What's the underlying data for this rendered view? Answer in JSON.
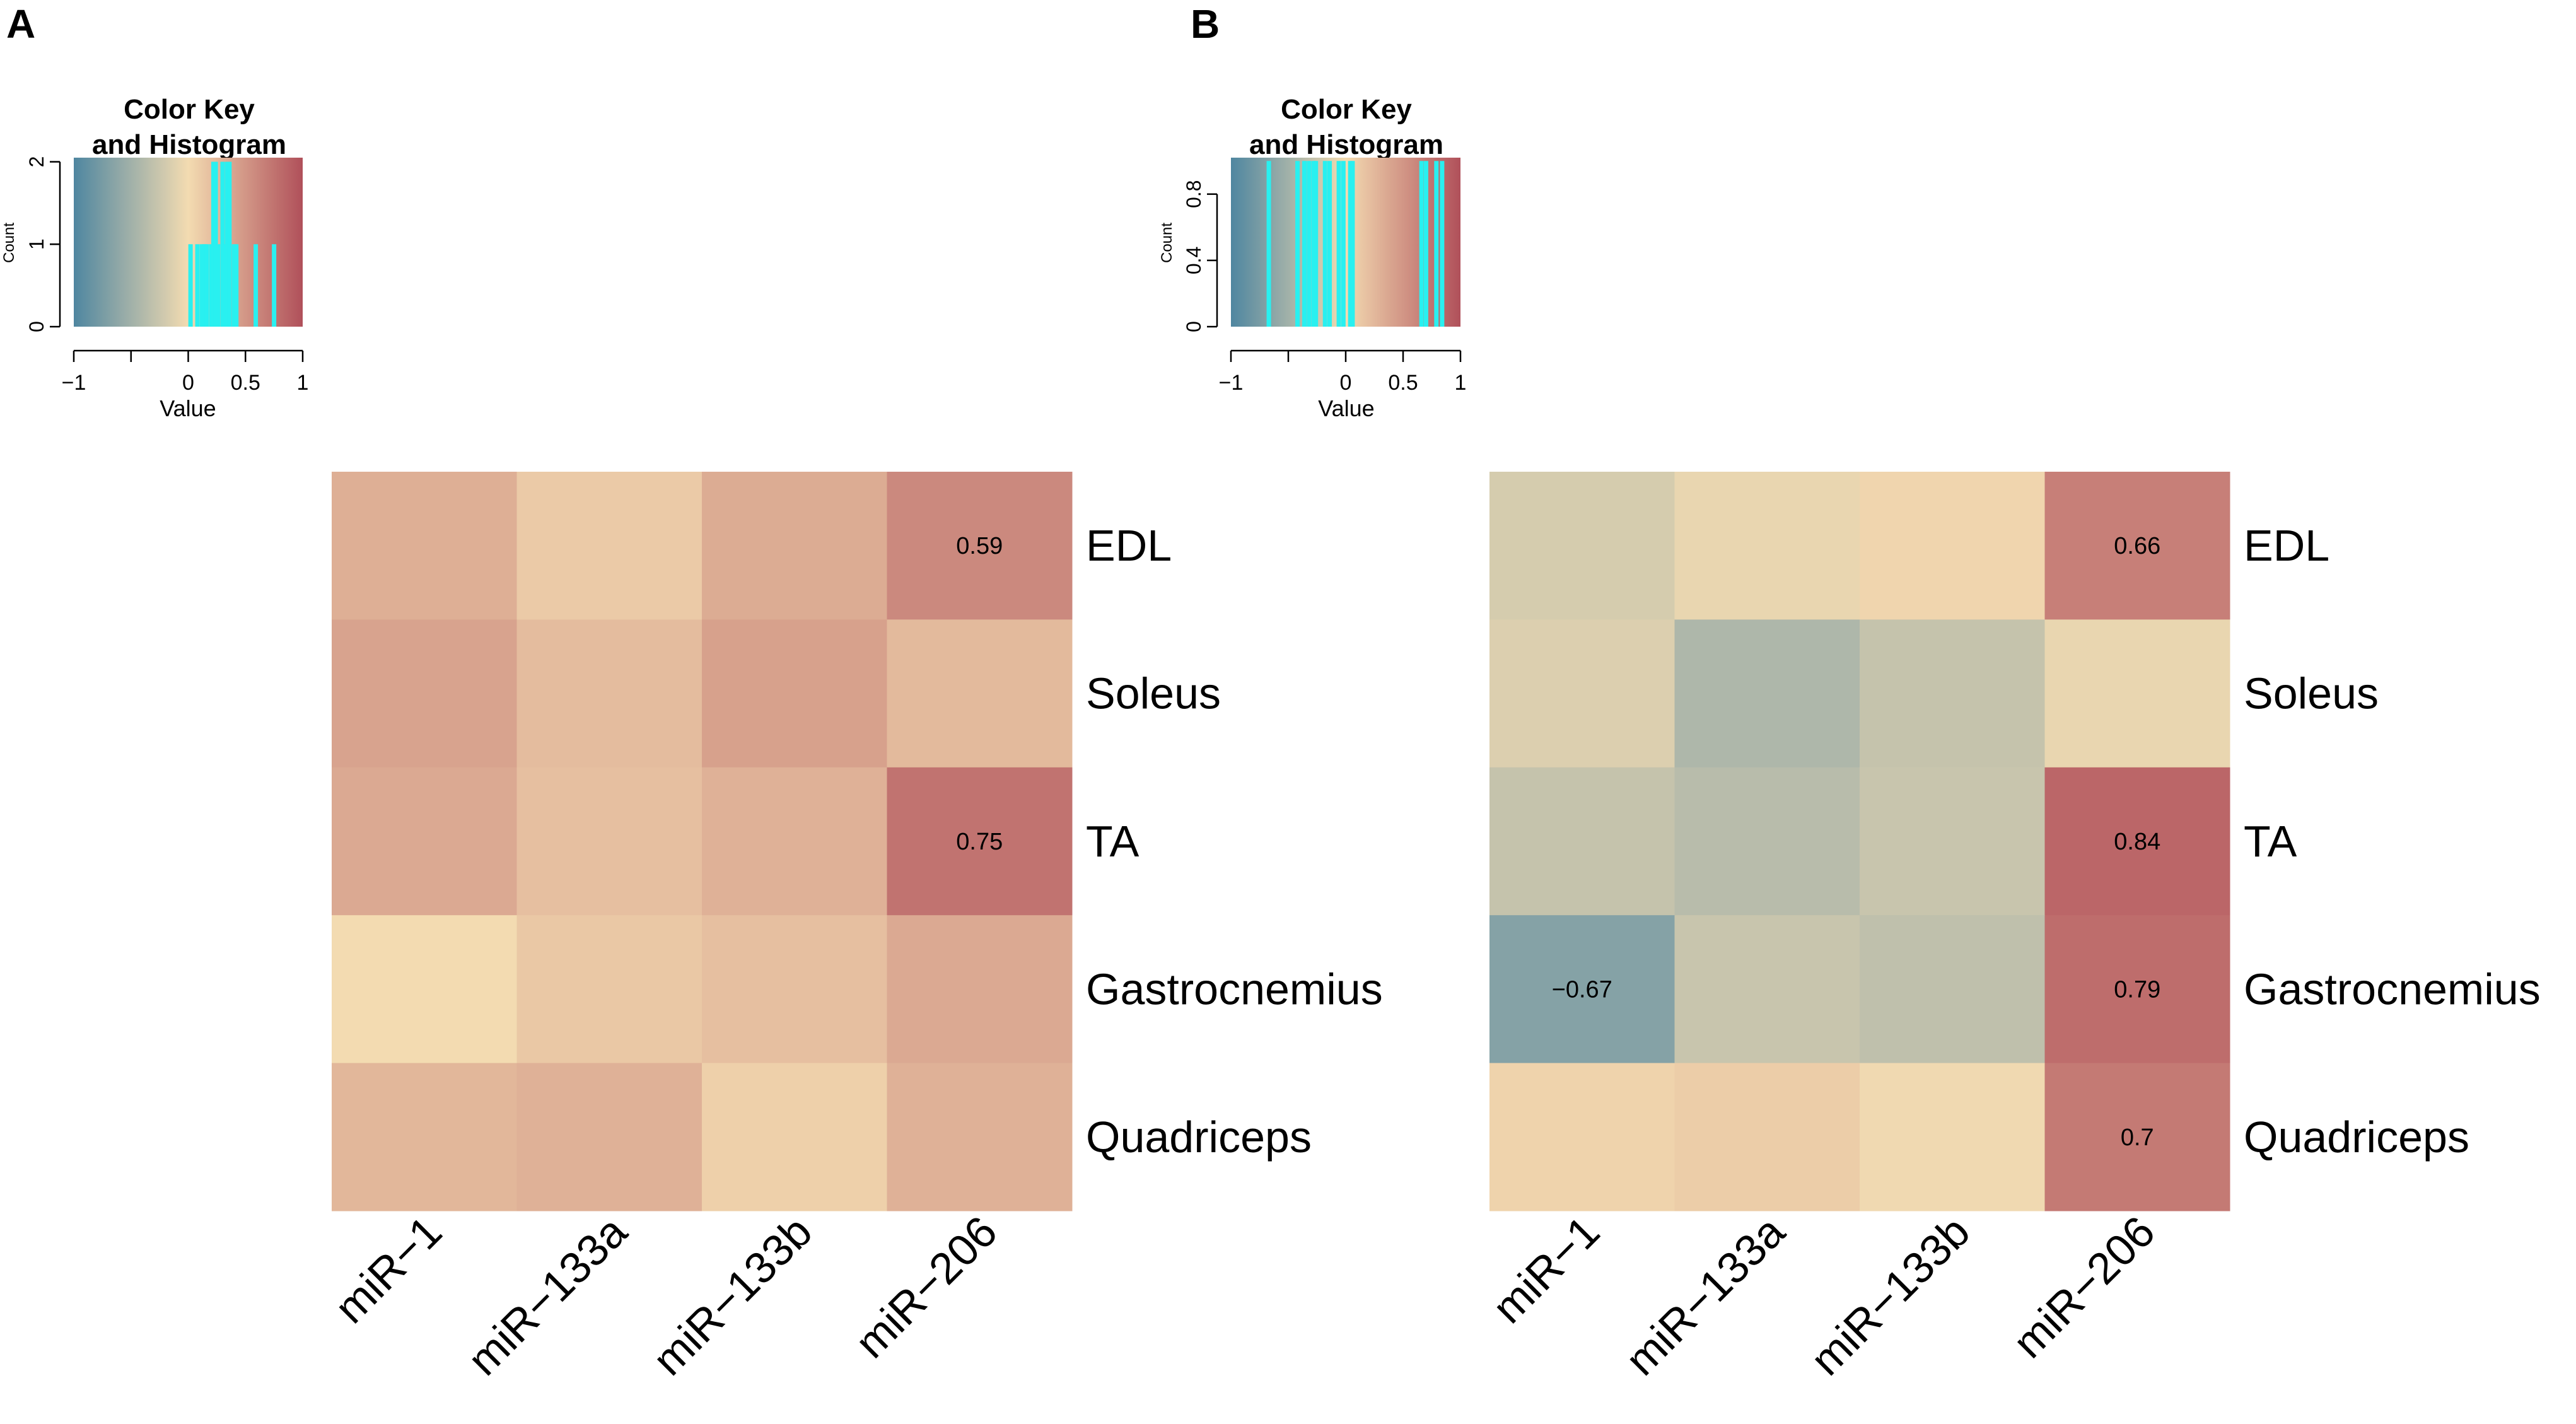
{
  "panels": [
    {
      "letter": "A"
    },
    {
      "letter": "B"
    }
  ],
  "colors": {
    "low": "#4f86a0",
    "mid": "#f3dbb1",
    "high": "#b0505a",
    "hist": "#29f0f0",
    "text": "#000000"
  },
  "chart_data": [
    {
      "type": "heatmap",
      "panel": "A",
      "columns": [
        "miR−1",
        "miR−133a",
        "miR−133b",
        "miR−206"
      ],
      "rows": [
        "EDL",
        "Soleus",
        "TA",
        "Gastrocnemius",
        "Quadriceps"
      ],
      "values": [
        [
          0.32,
          0.12,
          0.34,
          0.59
        ],
        [
          0.4,
          0.22,
          0.42,
          0.24
        ],
        [
          0.36,
          0.2,
          0.3,
          0.75
        ],
        [
          0.0,
          0.14,
          0.2,
          0.36
        ],
        [
          0.26,
          0.3,
          0.08,
          0.3
        ]
      ],
      "cell_labels": [
        [
          "",
          "",
          "",
          "0.59"
        ],
        [
          "",
          "",
          "",
          ""
        ],
        [
          "",
          "",
          "",
          "0.75"
        ],
        [
          "",
          "",
          "",
          ""
        ],
        [
          "",
          "",
          "",
          ""
        ]
      ],
      "value_range": [
        -1,
        1
      ],
      "color_key": {
        "title_line1": "Color Key",
        "title_line2": "and Histogram",
        "xlabel": "Value",
        "ylabel": "Count",
        "x_ticks": [
          "−1",
          "0",
          "0.5",
          "1"
        ],
        "x_tick_values": [
          -1,
          0,
          0.5,
          1
        ],
        "y_ticks": [
          "0",
          "1",
          "2"
        ],
        "y_tick_values": [
          0,
          1,
          2
        ],
        "y_max": 2.05,
        "histogram": [
          {
            "value": 0.02,
            "count": 1
          },
          {
            "value": 0.08,
            "count": 1
          },
          {
            "value": 0.12,
            "count": 1
          },
          {
            "value": 0.14,
            "count": 1
          },
          {
            "value": 0.16,
            "count": 1
          },
          {
            "value": 0.2,
            "count": 1
          },
          {
            "value": 0.22,
            "count": 2
          },
          {
            "value": 0.24,
            "count": 2
          },
          {
            "value": 0.26,
            "count": 1
          },
          {
            "value": 0.3,
            "count": 2
          },
          {
            "value": 0.32,
            "count": 1
          },
          {
            "value": 0.34,
            "count": 2
          },
          {
            "value": 0.36,
            "count": 2
          },
          {
            "value": 0.4,
            "count": 1
          },
          {
            "value": 0.42,
            "count": 1
          },
          {
            "value": 0.59,
            "count": 1
          },
          {
            "value": 0.75,
            "count": 1
          }
        ]
      }
    },
    {
      "type": "heatmap",
      "panel": "B",
      "columns": [
        "miR−1",
        "miR−133a",
        "miR−133b",
        "miR−206"
      ],
      "rows": [
        "EDL",
        "Soleus",
        "TA",
        "Gastrocnemius",
        "Quadriceps"
      ],
      "values": [
        [
          -0.18,
          -0.06,
          0.04,
          0.66
        ],
        [
          -0.14,
          -0.42,
          -0.28,
          -0.06
        ],
        [
          -0.28,
          -0.36,
          -0.26,
          0.84
        ],
        [
          -0.67,
          -0.26,
          -0.32,
          0.79
        ],
        [
          0.06,
          0.1,
          -0.02,
          0.7
        ]
      ],
      "cell_labels": [
        [
          "",
          "",
          "",
          "0.66"
        ],
        [
          "",
          "",
          "",
          ""
        ],
        [
          "",
          "",
          "",
          "0.84"
        ],
        [
          "−0.67",
          "",
          "",
          "0.79"
        ],
        [
          "",
          "",
          "",
          "0.7"
        ]
      ],
      "value_range": [
        -1,
        1
      ],
      "color_key": {
        "title_line1": "Color Key",
        "title_line2": "and Histogram",
        "xlabel": "Value",
        "ylabel": "Count",
        "x_ticks": [
          "−1",
          "0",
          "0.5",
          "1"
        ],
        "x_tick_values": [
          -1,
          0,
          0.5,
          1
        ],
        "y_ticks": [
          "0",
          "0.4",
          "0.8"
        ],
        "y_tick_values": [
          0,
          0.4,
          0.8
        ],
        "y_max": 1.02,
        "histogram": [
          {
            "value": -0.67,
            "count": 1
          },
          {
            "value": -0.42,
            "count": 1
          },
          {
            "value": -0.36,
            "count": 1
          },
          {
            "value": -0.32,
            "count": 1
          },
          {
            "value": -0.28,
            "count": 1
          },
          {
            "value": -0.26,
            "count": 1
          },
          {
            "value": -0.18,
            "count": 1
          },
          {
            "value": -0.14,
            "count": 1
          },
          {
            "value": -0.06,
            "count": 1
          },
          {
            "value": -0.02,
            "count": 1
          },
          {
            "value": 0.04,
            "count": 1
          },
          {
            "value": 0.06,
            "count": 1
          },
          {
            "value": 0.66,
            "count": 1
          },
          {
            "value": 0.7,
            "count": 1
          },
          {
            "value": 0.79,
            "count": 1
          },
          {
            "value": 0.84,
            "count": 1
          }
        ]
      }
    }
  ]
}
